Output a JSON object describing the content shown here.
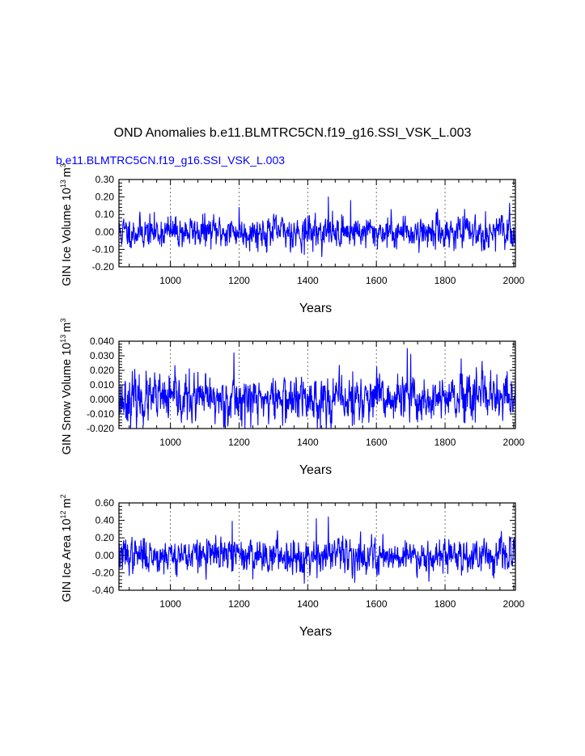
{
  "title": "OND Anomalies b.e11.BLMTRC5CN.f19_g16.SSI_VSK_L.003",
  "subtitle": "b.e11.BLMTRC5CN.f19_g16.SSI_VSK_L.003",
  "colors": {
    "line": "#0000ff",
    "subtitle": "#0000ff",
    "grid": "#555555"
  },
  "chart_data": [
    {
      "type": "line",
      "name": "ice-volume",
      "ylabel": "GIN Ice Volume 10",
      "ylabel_exp": "13",
      "ylabel_unit": "m",
      "ylabel_unit_exp": "3",
      "xlabel": "Years",
      "xlim": [
        850,
        2005
      ],
      "ylim": [
        -0.2,
        0.3
      ],
      "xticks": [
        1000,
        1200,
        1400,
        1600,
        1800,
        2000
      ],
      "yticks": [
        -0.2,
        -0.1,
        0.0,
        0.1,
        0.2,
        0.3
      ],
      "ytick_labels": [
        "-0.20",
        "-0.10",
        "0.00",
        "0.10",
        "0.20",
        "0.30"
      ],
      "grid_x": [
        1000,
        1200,
        1400,
        1600,
        1800
      ],
      "noise_sd": 0.042,
      "seed": 11,
      "peaks": [
        [
          1460,
          0.2
        ],
        [
          1525,
          0.18
        ],
        [
          1200,
          0.14
        ],
        [
          1390,
          -0.13
        ]
      ]
    },
    {
      "type": "line",
      "name": "snow-volume",
      "ylabel": "GIN Snow Volume 10",
      "ylabel_exp": "13",
      "ylabel_unit": "m",
      "ylabel_unit_exp": "3",
      "xlabel": "Years",
      "xlim": [
        850,
        2005
      ],
      "ylim": [
        -0.02,
        0.04
      ],
      "xticks": [
        1000,
        1200,
        1400,
        1600,
        1800,
        2000
      ],
      "yticks": [
        -0.02,
        -0.01,
        0.0,
        0.01,
        0.02,
        0.03,
        0.04
      ],
      "ytick_labels": [
        "-0.020",
        "-0.010",
        "0.000",
        "0.010",
        "0.020",
        "0.030",
        "0.040"
      ],
      "grid_x": [
        1000,
        1200,
        1400,
        1600,
        1800
      ],
      "noise_sd": 0.0075,
      "seed": 23,
      "peaks": [
        [
          1690,
          0.035
        ],
        [
          1185,
          0.032
        ],
        [
          1700,
          0.031
        ],
        [
          1530,
          -0.018
        ]
      ]
    },
    {
      "type": "line",
      "name": "ice-area",
      "ylabel": "GIN Ice Area 10",
      "ylabel_exp": "12",
      "ylabel_unit": "m",
      "ylabel_unit_exp": "2",
      "xlabel": "Years",
      "xlim": [
        850,
        2005
      ],
      "ylim": [
        -0.4,
        0.6
      ],
      "xticks": [
        1000,
        1200,
        1400,
        1600,
        1800,
        2000
      ],
      "yticks": [
        -0.4,
        -0.2,
        0.0,
        0.2,
        0.4,
        0.6
      ],
      "ytick_labels": [
        "-0.40",
        "-0.20",
        "0.00",
        "0.20",
        "0.40",
        "0.60"
      ],
      "grid_x": [
        1000,
        1200,
        1400,
        1600,
        1800
      ],
      "noise_sd": 0.09,
      "seed": 37,
      "peaks": [
        [
          1460,
          0.44
        ],
        [
          1425,
          0.42
        ],
        [
          1180,
          0.39
        ],
        [
          1390,
          -0.32
        ]
      ]
    }
  ]
}
